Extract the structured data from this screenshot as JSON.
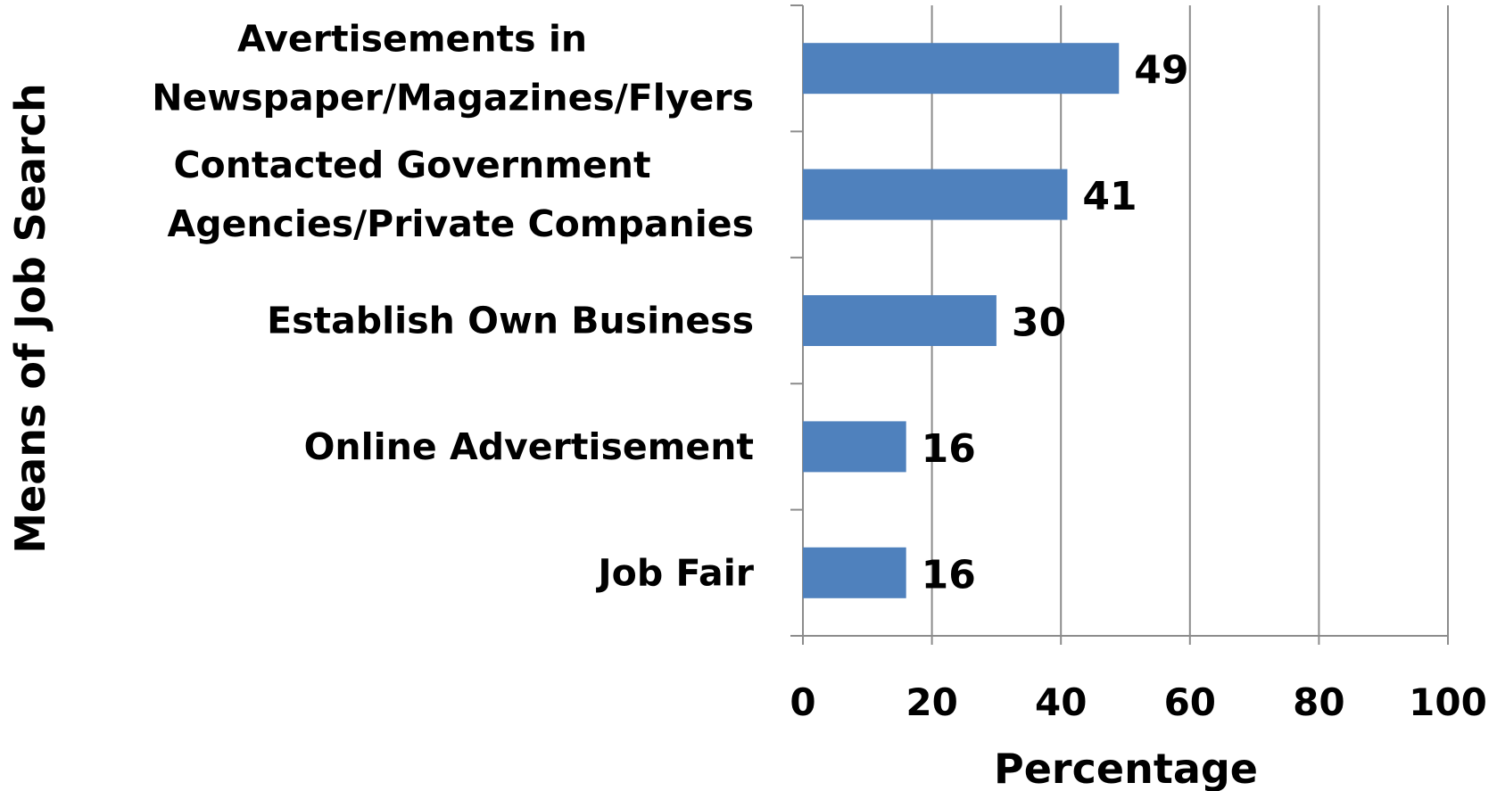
{
  "chart_data": {
    "type": "bar",
    "orientation": "horizontal",
    "categories": [
      [
        "Avertisements in",
        "Newspaper/Magazines/Flyers"
      ],
      [
        "Contacted Government",
        "Agencies/Private Companies"
      ],
      [
        "Establish Own Business"
      ],
      [
        "Online Advertisement"
      ],
      [
        "Job Fair"
      ]
    ],
    "values": [
      49,
      41,
      30,
      16,
      16
    ],
    "xlabel": "Percentage",
    "ylabel": "Means of Job Search",
    "xlim": [
      0,
      100
    ],
    "xticks": [
      0,
      20,
      40,
      60,
      80,
      100
    ],
    "grid": "vertical",
    "legend": "none",
    "bar_color": "#4F81BD",
    "grid_color": "#8C8C8C"
  }
}
